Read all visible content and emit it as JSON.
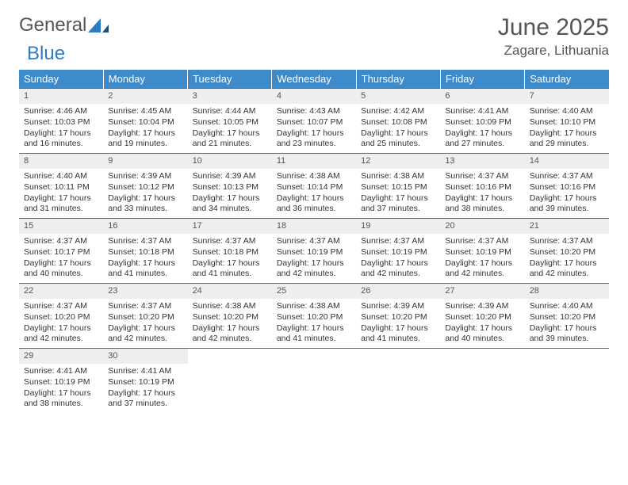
{
  "logo": {
    "text1": "General",
    "text2": "Blue"
  },
  "title": "June 2025",
  "location": "Zagare, Lithuania",
  "colors": {
    "header_bg": "#3d8bca",
    "header_fg": "#ffffff",
    "row_border": "#3d6f9e",
    "daynum_bg": "#eeeeee",
    "text": "#333333",
    "logo_gray": "#555555",
    "logo_blue": "#2f7bbf",
    "page_bg": "#ffffff"
  },
  "typography": {
    "month_title_size": 30,
    "location_size": 17,
    "weekday_size": 13,
    "cell_size": 10.5
  },
  "weekdays": [
    "Sunday",
    "Monday",
    "Tuesday",
    "Wednesday",
    "Thursday",
    "Friday",
    "Saturday"
  ],
  "weeks": [
    [
      {
        "n": "1",
        "sr": "4:46 AM",
        "ss": "10:03 PM",
        "dl": "17 hours and 16 minutes."
      },
      {
        "n": "2",
        "sr": "4:45 AM",
        "ss": "10:04 PM",
        "dl": "17 hours and 19 minutes."
      },
      {
        "n": "3",
        "sr": "4:44 AM",
        "ss": "10:05 PM",
        "dl": "17 hours and 21 minutes."
      },
      {
        "n": "4",
        "sr": "4:43 AM",
        "ss": "10:07 PM",
        "dl": "17 hours and 23 minutes."
      },
      {
        "n": "5",
        "sr": "4:42 AM",
        "ss": "10:08 PM",
        "dl": "17 hours and 25 minutes."
      },
      {
        "n": "6",
        "sr": "4:41 AM",
        "ss": "10:09 PM",
        "dl": "17 hours and 27 minutes."
      },
      {
        "n": "7",
        "sr": "4:40 AM",
        "ss": "10:10 PM",
        "dl": "17 hours and 29 minutes."
      }
    ],
    [
      {
        "n": "8",
        "sr": "4:40 AM",
        "ss": "10:11 PM",
        "dl": "17 hours and 31 minutes."
      },
      {
        "n": "9",
        "sr": "4:39 AM",
        "ss": "10:12 PM",
        "dl": "17 hours and 33 minutes."
      },
      {
        "n": "10",
        "sr": "4:39 AM",
        "ss": "10:13 PM",
        "dl": "17 hours and 34 minutes."
      },
      {
        "n": "11",
        "sr": "4:38 AM",
        "ss": "10:14 PM",
        "dl": "17 hours and 36 minutes."
      },
      {
        "n": "12",
        "sr": "4:38 AM",
        "ss": "10:15 PM",
        "dl": "17 hours and 37 minutes."
      },
      {
        "n": "13",
        "sr": "4:37 AM",
        "ss": "10:16 PM",
        "dl": "17 hours and 38 minutes."
      },
      {
        "n": "14",
        "sr": "4:37 AM",
        "ss": "10:16 PM",
        "dl": "17 hours and 39 minutes."
      }
    ],
    [
      {
        "n": "15",
        "sr": "4:37 AM",
        "ss": "10:17 PM",
        "dl": "17 hours and 40 minutes."
      },
      {
        "n": "16",
        "sr": "4:37 AM",
        "ss": "10:18 PM",
        "dl": "17 hours and 41 minutes."
      },
      {
        "n": "17",
        "sr": "4:37 AM",
        "ss": "10:18 PM",
        "dl": "17 hours and 41 minutes."
      },
      {
        "n": "18",
        "sr": "4:37 AM",
        "ss": "10:19 PM",
        "dl": "17 hours and 42 minutes."
      },
      {
        "n": "19",
        "sr": "4:37 AM",
        "ss": "10:19 PM",
        "dl": "17 hours and 42 minutes."
      },
      {
        "n": "20",
        "sr": "4:37 AM",
        "ss": "10:19 PM",
        "dl": "17 hours and 42 minutes."
      },
      {
        "n": "21",
        "sr": "4:37 AM",
        "ss": "10:20 PM",
        "dl": "17 hours and 42 minutes."
      }
    ],
    [
      {
        "n": "22",
        "sr": "4:37 AM",
        "ss": "10:20 PM",
        "dl": "17 hours and 42 minutes."
      },
      {
        "n": "23",
        "sr": "4:37 AM",
        "ss": "10:20 PM",
        "dl": "17 hours and 42 minutes."
      },
      {
        "n": "24",
        "sr": "4:38 AM",
        "ss": "10:20 PM",
        "dl": "17 hours and 42 minutes."
      },
      {
        "n": "25",
        "sr": "4:38 AM",
        "ss": "10:20 PM",
        "dl": "17 hours and 41 minutes."
      },
      {
        "n": "26",
        "sr": "4:39 AM",
        "ss": "10:20 PM",
        "dl": "17 hours and 41 minutes."
      },
      {
        "n": "27",
        "sr": "4:39 AM",
        "ss": "10:20 PM",
        "dl": "17 hours and 40 minutes."
      },
      {
        "n": "28",
        "sr": "4:40 AM",
        "ss": "10:20 PM",
        "dl": "17 hours and 39 minutes."
      }
    ],
    [
      {
        "n": "29",
        "sr": "4:41 AM",
        "ss": "10:19 PM",
        "dl": "17 hours and 38 minutes."
      },
      {
        "n": "30",
        "sr": "4:41 AM",
        "ss": "10:19 PM",
        "dl": "17 hours and 37 minutes."
      },
      null,
      null,
      null,
      null,
      null
    ]
  ],
  "labels": {
    "sunrise": "Sunrise: ",
    "sunset": "Sunset: ",
    "daylight": "Daylight: "
  }
}
